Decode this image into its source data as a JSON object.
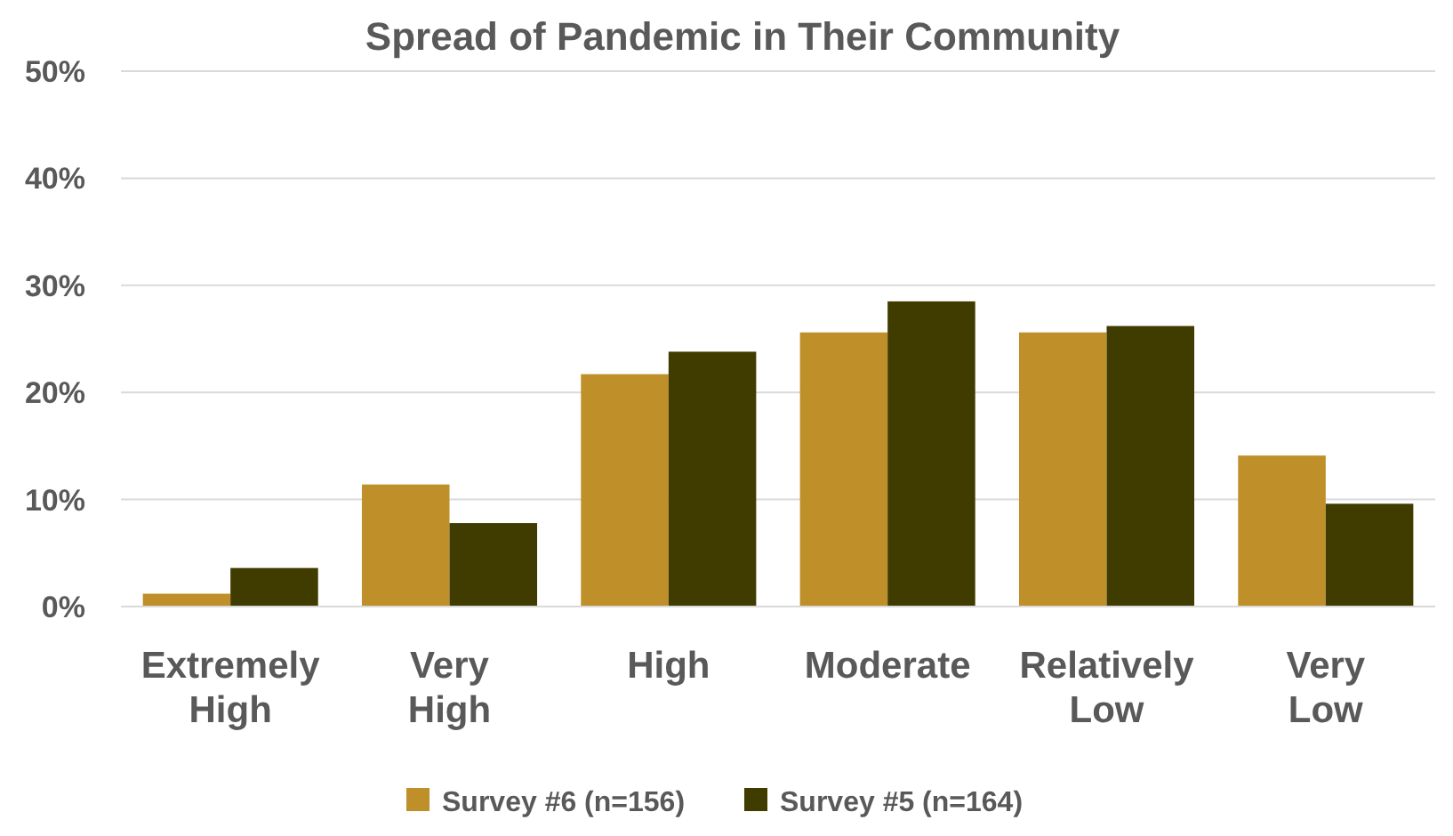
{
  "chart_data": {
    "type": "bar",
    "title": "Spread of Pandemic in Their Community",
    "categories": [
      "Extremely\nHigh",
      "Very\nHigh",
      "High",
      "Moderate",
      "Relatively\nLow",
      "Very\nLow"
    ],
    "series": [
      {
        "name": "Survey #6 (n=156)",
        "color": "#bf8f29",
        "values": [
          1.2,
          11.4,
          21.7,
          25.6,
          25.6,
          14.1
        ]
      },
      {
        "name": "Survey #5 (n=164)",
        "color": "#403c00",
        "values": [
          3.6,
          7.8,
          23.8,
          28.5,
          26.2,
          9.6
        ]
      }
    ],
    "ylim": [
      0,
      50
    ],
    "yticks": [
      {
        "value": 0,
        "label": "0%"
      },
      {
        "value": 10,
        "label": "10%"
      },
      {
        "value": 20,
        "label": "20%"
      },
      {
        "value": 30,
        "label": "30%"
      },
      {
        "value": 40,
        "label": "40%"
      },
      {
        "value": 50,
        "label": "50%"
      }
    ],
    "grid": "y",
    "legend": "bottom"
  }
}
